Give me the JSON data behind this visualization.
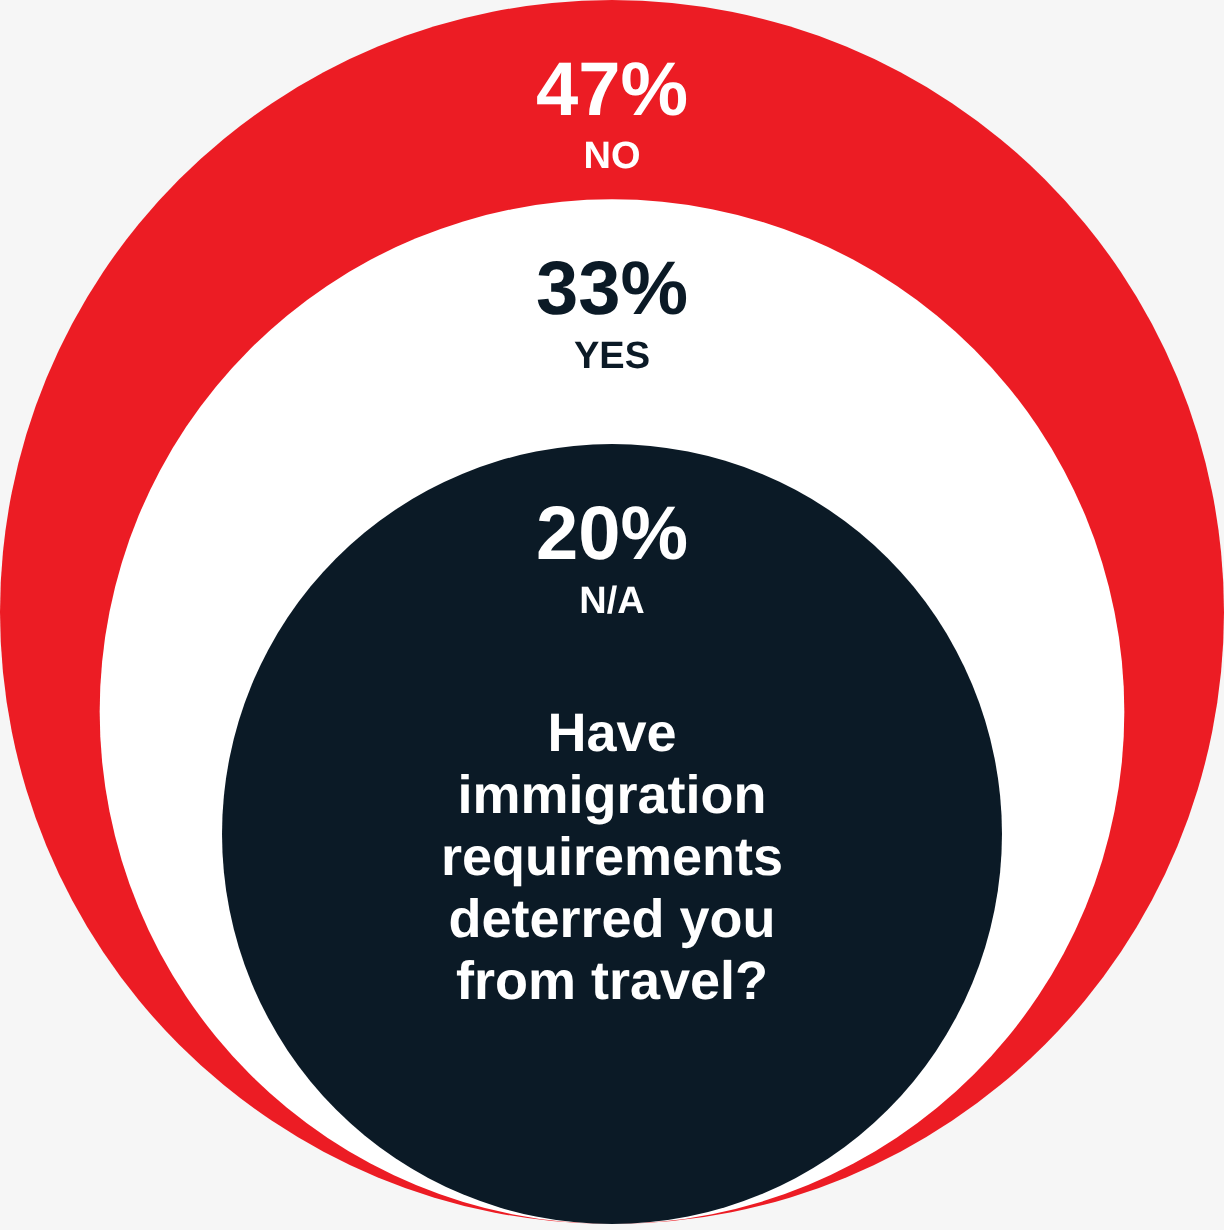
{
  "chart_data": {
    "type": "other",
    "title": "Have immigration requirements deterred you from travel?",
    "categories": [
      "NO",
      "YES",
      "N/A"
    ],
    "values": [
      47,
      33,
      20
    ],
    "value_labels": [
      "47%",
      "33%",
      "20%"
    ],
    "colors": [
      "#ec1c24",
      "#ffffff",
      "#0b1a26"
    ]
  }
}
